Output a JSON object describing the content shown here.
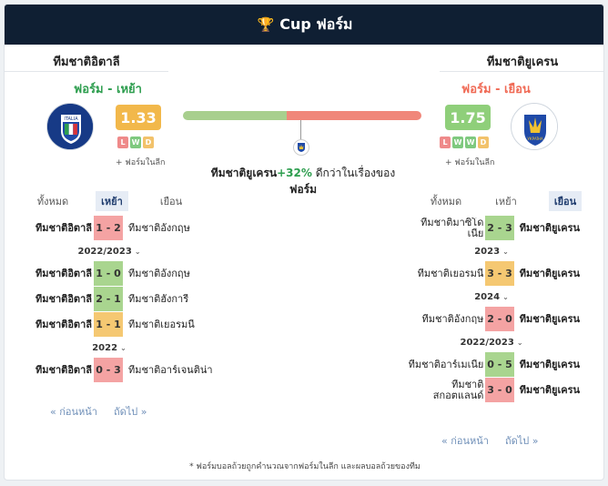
{
  "header": {
    "title": "Cup ฟอร์ม",
    "icon": "trophy-icon"
  },
  "home": {
    "name": "ทีมชาติอิตาลี",
    "form_label": "ฟอร์ม - เหย้า",
    "rating": "1.33",
    "form": [
      "L",
      "W",
      "D"
    ],
    "league_note": "+ ฟอร์มในลีก",
    "logo_text": "ITALIA",
    "tabs": [
      "ทั้งหมด",
      "เหย้า",
      "เยือน"
    ],
    "active_tab": "เหย้า",
    "pager_prev": "« ก่อนหน้า",
    "pager_next": "ถัดไป »"
  },
  "away": {
    "name": "ทีมชาติยูเครน",
    "form_label": "ฟอร์ม - เยือน",
    "rating": "1.75",
    "form": [
      "L",
      "W",
      "W",
      "D"
    ],
    "league_note": "+ ฟอร์มในลีก",
    "logo_text": "УКРАЇНА",
    "tabs": [
      "ทั้งหมด",
      "เหย้า",
      "เยือน"
    ],
    "active_tab": "เยือน",
    "pager_prev": "« ก่อนหน้า",
    "pager_next": "ถัดไป »"
  },
  "comparison": {
    "team": "ทีมชาติยูเครน",
    "percent": "+32%",
    "text": "ดีกว่าในเรื่องของ",
    "subject": "ฟอร์ม",
    "home_share": 0.435,
    "colors": {
      "home": "#a8cf8e",
      "away": "#f0877a"
    }
  },
  "home_matches": [
    {
      "type": "match",
      "home": "ทีมชาติอิตาลี",
      "score": "1 - 2",
      "result": "L",
      "away": "ทีมชาติอังกฤษ"
    },
    {
      "type": "season",
      "label": "2022/2023"
    },
    {
      "type": "match",
      "home": "ทีมชาติอิตาลี",
      "score": "1 - 0",
      "result": "W",
      "away": "ทีมชาติอังกฤษ"
    },
    {
      "type": "match",
      "home": "ทีมชาติอิตาลี",
      "score": "2 - 1",
      "result": "W",
      "away": "ทีมชาติฮังการี"
    },
    {
      "type": "match",
      "home": "ทีมชาติอิตาลี",
      "score": "1 - 1",
      "result": "D",
      "away": "ทีมชาติเยอรมนี"
    },
    {
      "type": "season",
      "label": "2022"
    },
    {
      "type": "match",
      "home": "ทีมชาติอิตาลี",
      "score": "0 - 3",
      "result": "L",
      "away": "ทีมชาติอาร์เจนติน่า"
    }
  ],
  "away_matches": [
    {
      "type": "match",
      "home": "ทีมชาติมาซิโดเนีย",
      "score": "2 - 3",
      "result": "W",
      "away": "ทีมชาติยูเครน"
    },
    {
      "type": "season",
      "label": "2023"
    },
    {
      "type": "match",
      "home": "ทีมชาติเยอรมนี",
      "score": "3 - 3",
      "result": "D",
      "away": "ทีมชาติยูเครน"
    },
    {
      "type": "season",
      "label": "2024"
    },
    {
      "type": "match",
      "home": "ทีมชาติอังกฤษ",
      "score": "2 - 0",
      "result": "L",
      "away": "ทีมชาติยูเครน"
    },
    {
      "type": "season",
      "label": "2022/2023"
    },
    {
      "type": "match",
      "home": "ทีมชาติอาร์เมเนีย",
      "score": "0 - 5",
      "result": "W",
      "away": "ทีมชาติยูเครน"
    },
    {
      "type": "match",
      "home": "ทีมชาติสกอตแลนด์",
      "score": "3 - 0",
      "result": "L",
      "away": "ทีมชาติยูเครน"
    }
  ],
  "footer": "* ฟอร์มบอลถ้วยถูกคำนวณจากฟอร์มในลีก และผลบอลถ้วยของทีม"
}
